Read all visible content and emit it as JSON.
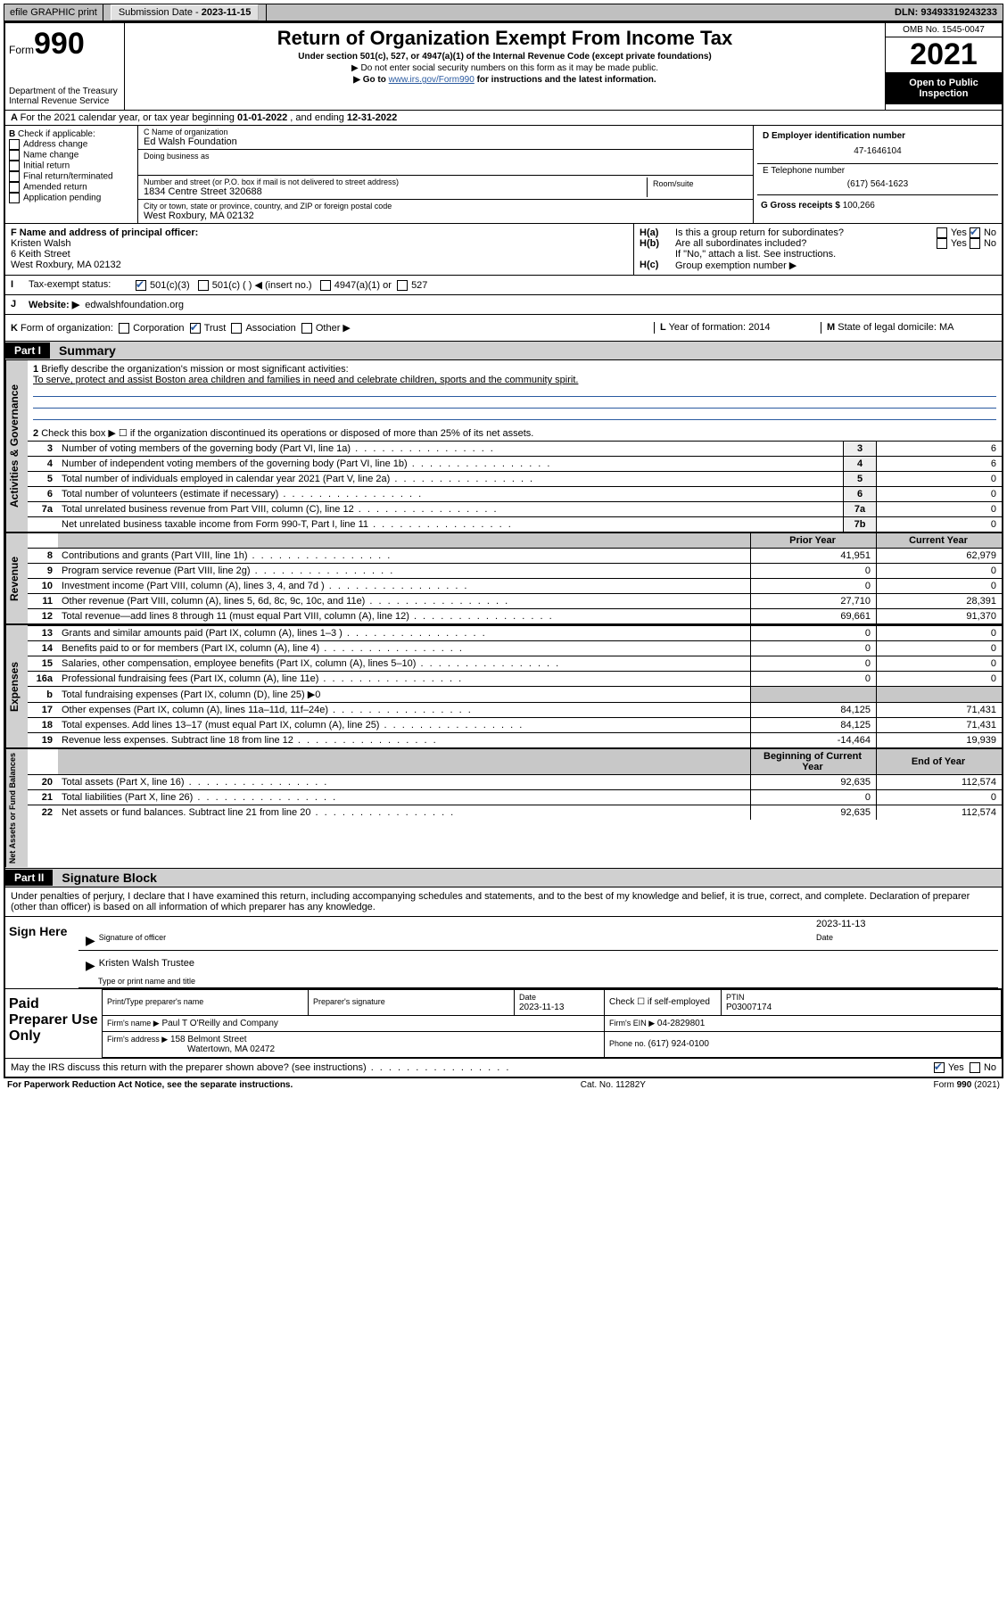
{
  "topbar": {
    "efile": "efile GRAPHIC print",
    "submission_label": "Submission Date - ",
    "submission_date": "2023-11-15",
    "dln_label": "DLN: ",
    "dln": "93493319243233"
  },
  "header": {
    "form_word": "Form",
    "form_no": "990",
    "dept": "Department of the Treasury",
    "irs": "Internal Revenue Service",
    "title": "Return of Organization Exempt From Income Tax",
    "sub1": "Under section 501(c), 527, or 4947(a)(1) of the Internal Revenue Code (except private foundations)",
    "sub2": "▶ Do not enter social security numbers on this form as it may be made public.",
    "sub3_pre": "▶ Go to ",
    "sub3_link": "www.irs.gov/Form990",
    "sub3_post": " for instructions and the latest information.",
    "omb": "OMB No. 1545-0047",
    "year": "2021",
    "open1": "Open to Public",
    "open2": "Inspection"
  },
  "A": {
    "text_pre": "For the 2021 calendar year, or tax year beginning ",
    "begin": "01-01-2022",
    "mid": " , and ending ",
    "end": "12-31-2022"
  },
  "B": {
    "label": "Check if applicable:",
    "opts": [
      "Address change",
      "Name change",
      "Initial return",
      "Final return/terminated",
      "Amended return",
      "Application pending"
    ]
  },
  "C": {
    "name_label": "C Name of organization",
    "name": "Ed Walsh Foundation",
    "dba_label": "Doing business as",
    "street_label": "Number and street (or P.O. box if mail is not delivered to street address)",
    "room_label": "Room/suite",
    "street": "1834 Centre Street 320688",
    "city_label": "City or town, state or province, country, and ZIP or foreign postal code",
    "city": "West Roxbury, MA  02132"
  },
  "D": {
    "label": "D Employer identification number",
    "val": "47-1646104"
  },
  "E": {
    "label": "E Telephone number",
    "val": "(617) 564-1623"
  },
  "G": {
    "label": "G Gross receipts $ ",
    "val": "100,266"
  },
  "F": {
    "label": "F  Name and address of principal officer:",
    "name": "Kristen Walsh",
    "street": "6 Keith Street",
    "city": "West Roxbury, MA  02132"
  },
  "H": {
    "a_q": "Is this a group return for subordinates?",
    "b_q": "Are all subordinates included?",
    "b_note": "If \"No,\" attach a list. See instructions.",
    "c_q": "Group exemption number ▶",
    "yes": "Yes",
    "no": "No"
  },
  "I": {
    "label": "Tax-exempt status:",
    "o1": "501(c)(3)",
    "o2": "501(c) (  ) ◀ (insert no.)",
    "o3": "4947(a)(1) or",
    "o4": "527"
  },
  "J": {
    "label": "Website: ▶",
    "val": "edwalshfoundation.org"
  },
  "K": {
    "label": "Form of organization:",
    "opts": [
      "Corporation",
      "Trust",
      "Association",
      "Other ▶"
    ],
    "checked": 1
  },
  "L": {
    "label": "Year of formation: ",
    "val": "2014"
  },
  "M": {
    "label": "State of legal domicile: ",
    "val": "MA"
  },
  "part1": {
    "hdr": "Part I",
    "title": "Summary",
    "l1_label": "Briefly describe the organization's mission or most significant activities:",
    "l1_text": "To serve, protect and assist Boston area children and families in need and celebrate children, sports and the community spirit.",
    "l2": "Check this box ▶ ☐  if the organization discontinued its operations or disposed of more than 25% of its net assets.",
    "rows_gov": [
      {
        "n": "3",
        "d": "Number of voting members of the governing body (Part VI, line 1a)",
        "b": "3",
        "v": "6"
      },
      {
        "n": "4",
        "d": "Number of independent voting members of the governing body (Part VI, line 1b)",
        "b": "4",
        "v": "6"
      },
      {
        "n": "5",
        "d": "Total number of individuals employed in calendar year 2021 (Part V, line 2a)",
        "b": "5",
        "v": "0"
      },
      {
        "n": "6",
        "d": "Total number of volunteers (estimate if necessary)",
        "b": "6",
        "v": "0"
      },
      {
        "n": "7a",
        "d": "Total unrelated business revenue from Part VIII, column (C), line 12",
        "b": "7a",
        "v": "0"
      },
      {
        "n": "",
        "d": "Net unrelated business taxable income from Form 990-T, Part I, line 11",
        "b": "7b",
        "v": "0"
      }
    ],
    "col_prior": "Prior Year",
    "col_current": "Current Year",
    "rows_rev": [
      {
        "n": "8",
        "d": "Contributions and grants (Part VIII, line 1h)",
        "p": "41,951",
        "c": "62,979"
      },
      {
        "n": "9",
        "d": "Program service revenue (Part VIII, line 2g)",
        "p": "0",
        "c": "0"
      },
      {
        "n": "10",
        "d": "Investment income (Part VIII, column (A), lines 3, 4, and 7d )",
        "p": "0",
        "c": "0"
      },
      {
        "n": "11",
        "d": "Other revenue (Part VIII, column (A), lines 5, 6d, 8c, 9c, 10c, and 11e)",
        "p": "27,710",
        "c": "28,391"
      },
      {
        "n": "12",
        "d": "Total revenue—add lines 8 through 11 (must equal Part VIII, column (A), line 12)",
        "p": "69,661",
        "c": "91,370"
      }
    ],
    "rows_exp": [
      {
        "n": "13",
        "d": "Grants and similar amounts paid (Part IX, column (A), lines 1–3 )",
        "p": "0",
        "c": "0"
      },
      {
        "n": "14",
        "d": "Benefits paid to or for members (Part IX, column (A), line 4)",
        "p": "0",
        "c": "0"
      },
      {
        "n": "15",
        "d": "Salaries, other compensation, employee benefits (Part IX, column (A), lines 5–10)",
        "p": "0",
        "c": "0"
      },
      {
        "n": "16a",
        "d": "Professional fundraising fees (Part IX, column (A), line 11e)",
        "p": "0",
        "c": "0"
      },
      {
        "n": "b",
        "d": "Total fundraising expenses (Part IX, column (D), line 25) ▶0",
        "p": "",
        "c": "",
        "shade": true
      },
      {
        "n": "17",
        "d": "Other expenses (Part IX, column (A), lines 11a–11d, 11f–24e)",
        "p": "84,125",
        "c": "71,431"
      },
      {
        "n": "18",
        "d": "Total expenses. Add lines 13–17 (must equal Part IX, column (A), line 25)",
        "p": "84,125",
        "c": "71,431"
      },
      {
        "n": "19",
        "d": "Revenue less expenses. Subtract line 18 from line 12",
        "p": "-14,464",
        "c": "19,939"
      }
    ],
    "col_begin": "Beginning of Current Year",
    "col_end": "End of Year",
    "rows_net": [
      {
        "n": "20",
        "d": "Total assets (Part X, line 16)",
        "p": "92,635",
        "c": "112,574"
      },
      {
        "n": "21",
        "d": "Total liabilities (Part X, line 26)",
        "p": "0",
        "c": "0"
      },
      {
        "n": "22",
        "d": "Net assets or fund balances. Subtract line 21 from line 20",
        "p": "92,635",
        "c": "112,574"
      }
    ],
    "vlab_gov": "Activities & Governance",
    "vlab_rev": "Revenue",
    "vlab_exp": "Expenses",
    "vlab_net": "Net Assets or Fund Balances"
  },
  "part2": {
    "hdr": "Part II",
    "title": "Signature Block",
    "decl": "Under penalties of perjury, I declare that I have examined this return, including accompanying schedules and statements, and to the best of my knowledge and belief, it is true, correct, and complete. Declaration of preparer (other than officer) is based on all information of which preparer has any knowledge.",
    "sign_here": "Sign Here",
    "sig_officer": "Signature of officer",
    "date_label": "Date",
    "sig_date": "2023-11-13",
    "officer_name": "Kristen Walsh  Trustee",
    "type_name": "Type or print name and title",
    "paid": "Paid Preparer Use Only",
    "prep_name_hdr": "Print/Type preparer's name",
    "prep_sig_hdr": "Preparer's signature",
    "prep_date_hdr": "Date",
    "prep_date": "2023-11-13",
    "self_emp": "Check ☐ if self-employed",
    "ptin_hdr": "PTIN",
    "ptin": "P03007174",
    "firm_name_l": "Firm's name    ▶",
    "firm_name": "Paul T O'Reilly and Company",
    "firm_ein_l": "Firm's EIN ▶",
    "firm_ein": "04-2829801",
    "firm_addr_l": "Firm's address ▶",
    "firm_addr1": "158 Belmont Street",
    "firm_addr2": "Watertown, MA  02472",
    "phone_l": "Phone no. ",
    "phone": "(617) 924-0100",
    "discuss": "May the IRS discuss this return with the preparer shown above? (see instructions)"
  },
  "footer": {
    "pra": "For Paperwork Reduction Act Notice, see the separate instructions.",
    "cat": "Cat. No. 11282Y",
    "form": "Form 990 (2021)"
  }
}
